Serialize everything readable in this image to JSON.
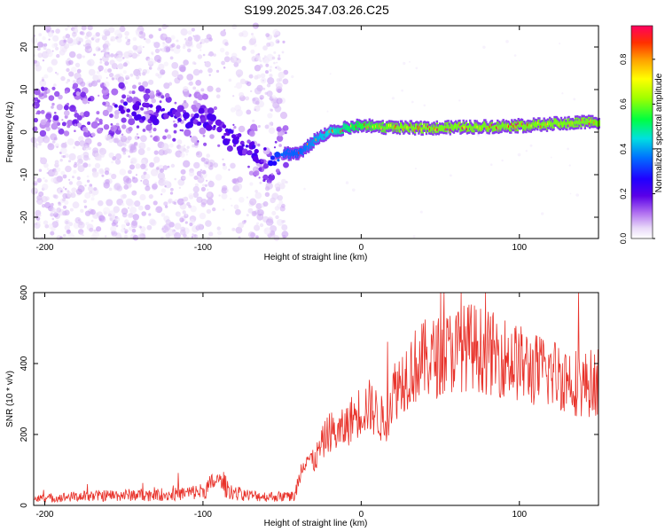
{
  "title": "S199.2025.347.03.26.C25",
  "chart_data": [
    {
      "type": "heatmap",
      "xlabel": "Height of straight line (km)",
      "ylabel": "Frequency (Hz)",
      "xlim": [
        -207,
        150
      ],
      "ylim": [
        -25,
        25
      ],
      "xticks": [
        -200,
        -100,
        0,
        100
      ],
      "yticks": [
        -20,
        -10,
        0,
        10,
        20
      ],
      "colorbar": {
        "label": "Normalized spectral amplitude",
        "range": [
          0,
          0.95
        ],
        "ticks": [
          0.0,
          0.2,
          0.4,
          0.6,
          0.8
        ],
        "colormap": [
          "#ffffff",
          "#e8d8f8",
          "#b070f0",
          "#7a10e0",
          "#2000ff",
          "#0070ff",
          "#00e0e0",
          "#00ff40",
          "#a0ff00",
          "#ffff00",
          "#ffa000",
          "#ff3000",
          "#ff0060"
        ]
      },
      "ridge": {
        "description_points_x": [
          -150,
          -120,
          -100,
          -80,
          -60,
          -50,
          -40,
          -30,
          -20,
          -10,
          0,
          20,
          50,
          100,
          150
        ],
        "frequency": [
          5,
          4,
          3,
          -2,
          -6,
          -5,
          -5,
          -2,
          0,
          1,
          1.5,
          1,
          1,
          1.5,
          2.5
        ],
        "mean_amplitude": [
          0.15,
          0.15,
          0.15,
          0.15,
          0.15,
          0.35,
          0.35,
          0.4,
          0.45,
          0.5,
          0.55,
          0.6,
          0.6,
          0.6,
          0.6
        ]
      }
    },
    {
      "type": "line",
      "xlabel": "Height of straight line (km)",
      "ylabel": "SNR (10 * v/v)",
      "xlim": [
        -207,
        150
      ],
      "ylim": [
        0,
        600
      ],
      "xticks": [
        -200,
        -100,
        0,
        100
      ],
      "yticks": [
        0,
        200,
        400,
        600
      ],
      "series": [
        {
          "color": "#e8322a",
          "x": [
            -207,
            -180,
            -160,
            -140,
            -120,
            -100,
            -95,
            -90,
            -85,
            -80,
            -70,
            -60,
            -50,
            -42,
            -38,
            -35,
            -30,
            -25,
            -20,
            -15,
            -10,
            -5,
            0,
            5,
            10,
            15,
            20,
            25,
            30,
            40,
            50,
            60,
            70,
            80,
            90,
            100,
            110,
            120,
            130,
            140,
            150
          ],
          "values": [
            18,
            25,
            28,
            30,
            30,
            40,
            55,
            75,
            50,
            35,
            28,
            25,
            25,
            25,
            100,
            140,
            120,
            170,
            210,
            200,
            220,
            250,
            270,
            280,
            260,
            230,
            320,
            350,
            380,
            410,
            420,
            440,
            450,
            430,
            420,
            400,
            380,
            375,
            360,
            340,
            350
          ]
        }
      ]
    }
  ]
}
